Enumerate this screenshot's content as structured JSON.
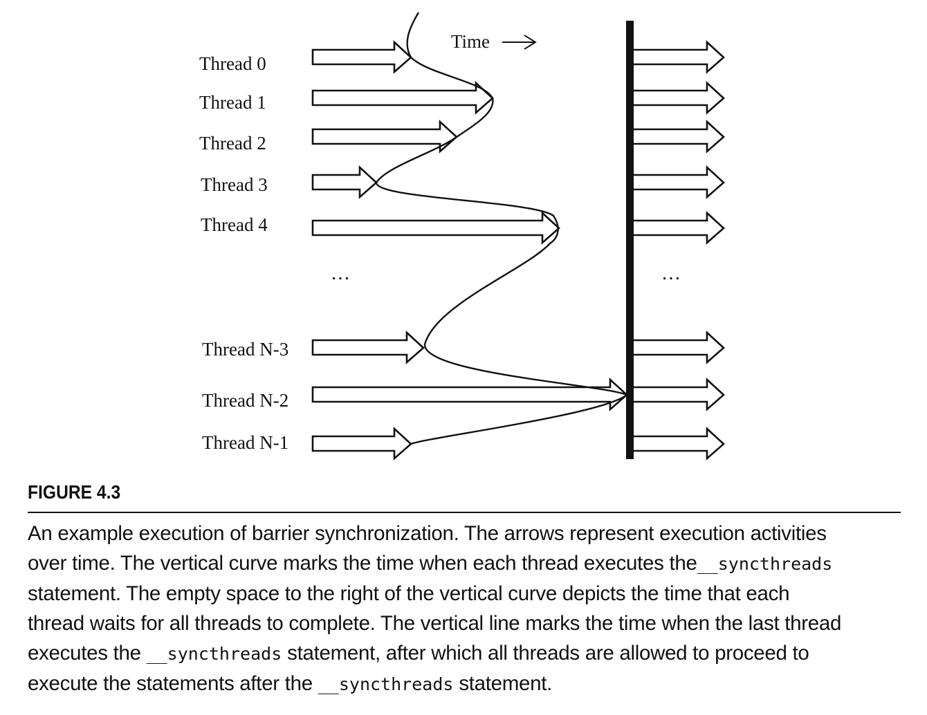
{
  "diagram": {
    "time_label": "Time",
    "ellipsis_left": "…",
    "ellipsis_right": "…",
    "threads": [
      {
        "label": "Thread 0"
      },
      {
        "label": "Thread 1"
      },
      {
        "label": "Thread 2"
      },
      {
        "label": "Thread 3"
      },
      {
        "label": "Thread 4"
      },
      {
        "label": "Thread N-3"
      },
      {
        "label": "Thread N-2"
      },
      {
        "label": "Thread N-1"
      }
    ]
  },
  "figure": {
    "label": "FIGURE 4.3",
    "caption": {
      "line1": "An example execution of barrier synchronization. The arrows represent execution activities",
      "line2_a": "over time. The vertical curve marks the time when each thread executes the",
      "line2_code": "__syncthreads",
      "line3": "statement. The empty space to the right of the vertical curve depicts the time that each",
      "line4": "thread waits for all threads to complete. The vertical line marks the time when the last thread",
      "line5_a": "executes the ",
      "line5_code": "__syncthreads",
      "line5_b": " statement, after which all threads are allowed to proceed to",
      "line6_a": "execute the statements after the ",
      "line6_code": "__syncthreads",
      "line6_b": " statement."
    }
  }
}
